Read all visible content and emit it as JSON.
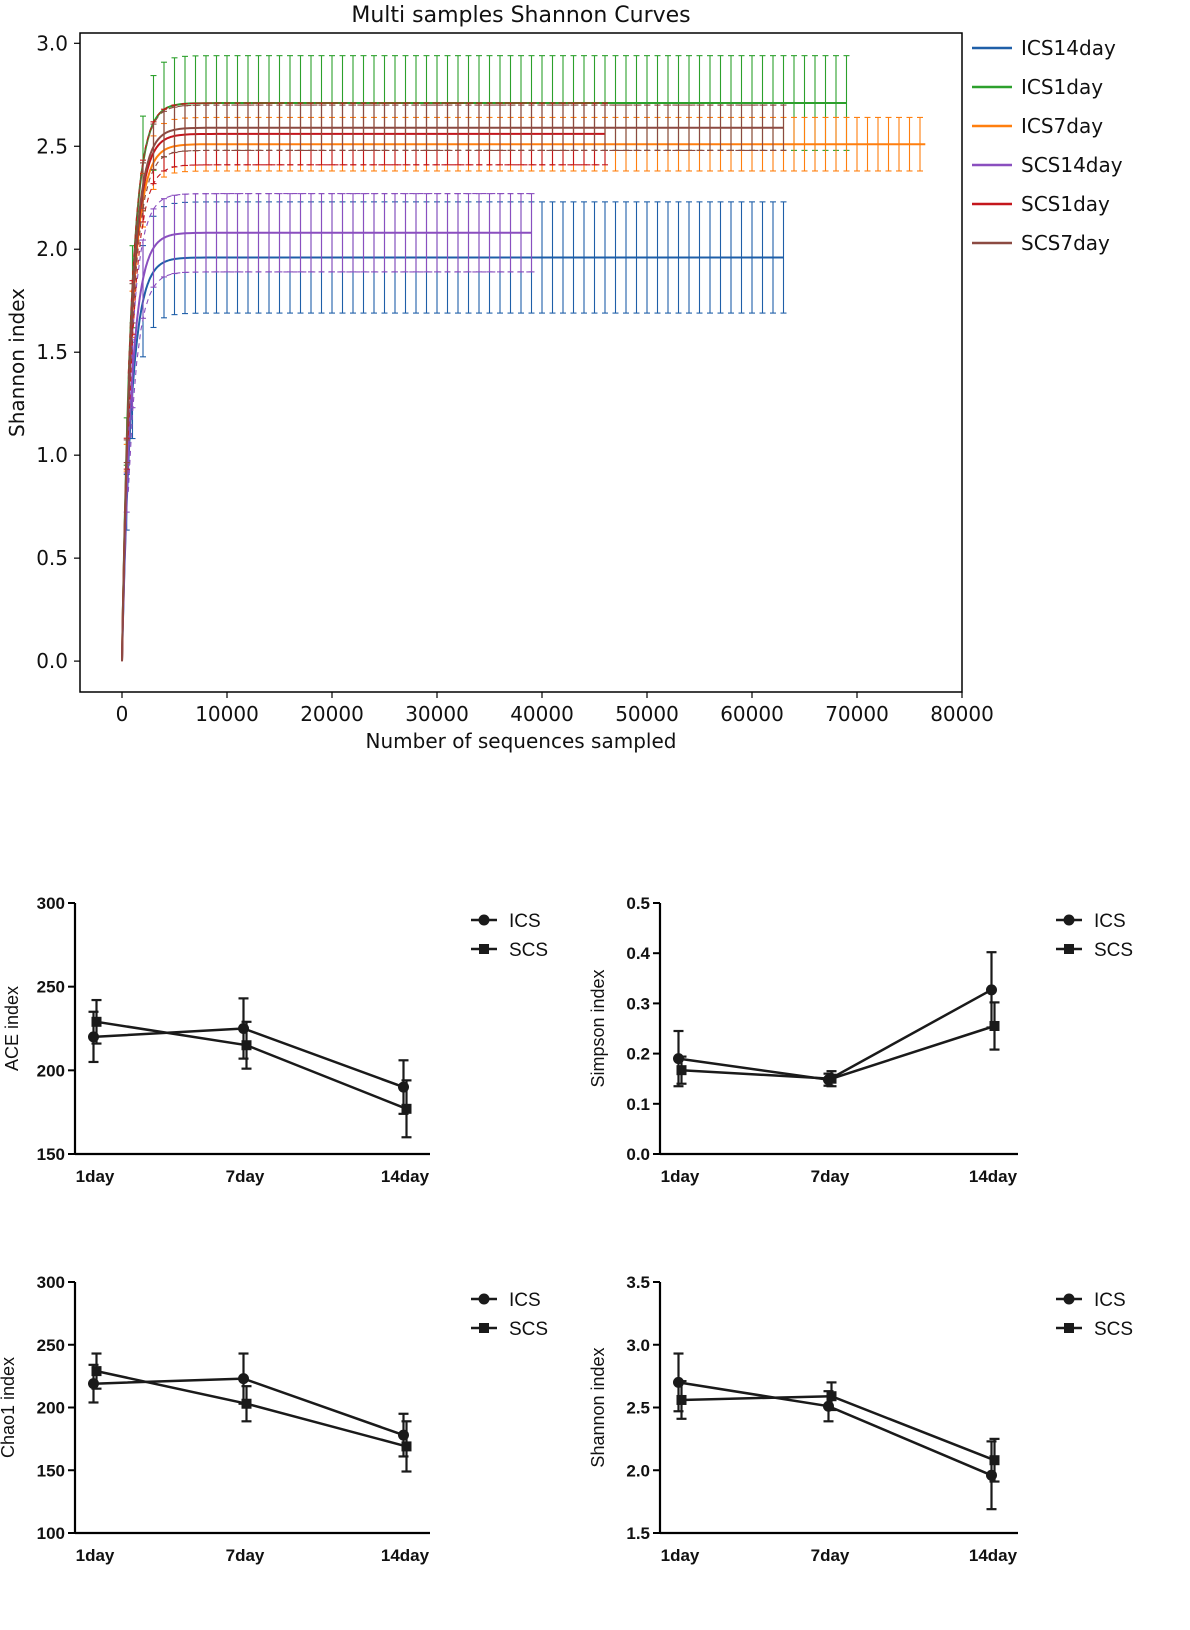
{
  "chart_data": [
    {
      "type": "line",
      "title": "Multi samples Shannon Curves",
      "xlabel": "Number of sequences sampled",
      "ylabel": "Shannon index",
      "xlim": [
        -4000,
        80000
      ],
      "ylim": [
        -0.15,
        3.05
      ],
      "xticks": [
        0,
        10000,
        20000,
        30000,
        40000,
        50000,
        60000,
        70000,
        80000
      ],
      "yticks": [
        0.0,
        0.5,
        1.0,
        1.5,
        2.0,
        2.5,
        3.0
      ],
      "xtick_labels": [
        "0",
        "10000",
        "20000",
        "30000",
        "40000",
        "50000",
        "60000",
        "70000",
        "80000"
      ],
      "ytick_labels": [
        "0.0",
        "0.5",
        "1.0",
        "1.5",
        "2.0",
        "2.5",
        "3.0"
      ],
      "legend_position": "outside-right",
      "series": [
        {
          "name": "ICS14day",
          "color": "#1f5fa8",
          "max_x": 63000,
          "plateau": 1.96,
          "err": 0.27,
          "err_solid": true
        },
        {
          "name": "ICS1day",
          "color": "#2ca02c",
          "max_x": 69000,
          "plateau": 2.71,
          "err": 0.23,
          "err_solid": true
        },
        {
          "name": "ICS7day",
          "color": "#ff7f0e",
          "max_x": 76500,
          "plateau": 2.51,
          "err": 0.13,
          "err_solid": true
        },
        {
          "name": "SCS14day",
          "color": "#8a4fbf",
          "max_x": 39000,
          "plateau": 2.08,
          "err": 0.19,
          "err_solid": false
        },
        {
          "name": "SCS1day",
          "color": "#c4161c",
          "max_x": 46000,
          "plateau": 2.56,
          "err": 0.15,
          "err_solid": false
        },
        {
          "name": "SCS7day",
          "color": "#8c4a42",
          "max_x": 63000,
          "plateau": 2.59,
          "err": 0.11,
          "err_solid": false
        }
      ]
    },
    {
      "type": "line",
      "title": "",
      "xlabel": "",
      "ylabel": "ACE index",
      "categories": [
        "1day",
        "7day",
        "14day"
      ],
      "ylim": [
        150,
        300
      ],
      "yticks": [
        150,
        200,
        250,
        300
      ],
      "ytick_labels": [
        "150",
        "200",
        "250",
        "300"
      ],
      "legend_position": "top-right",
      "series": [
        {
          "name": "ICS",
          "marker": "circle",
          "values": [
            220,
            225,
            190
          ],
          "err": [
            15,
            18,
            16
          ]
        },
        {
          "name": "SCS",
          "marker": "square",
          "values": [
            229,
            215,
            177
          ],
          "err": [
            13,
            14,
            17
          ]
        }
      ]
    },
    {
      "type": "line",
      "title": "",
      "xlabel": "",
      "ylabel": "Simpson index",
      "categories": [
        "1day",
        "7day",
        "14day"
      ],
      "ylim": [
        0.0,
        0.5
      ],
      "yticks": [
        0.0,
        0.1,
        0.2,
        0.3,
        0.4,
        0.5
      ],
      "ytick_labels": [
        "0.0",
        "0.1",
        "0.2",
        "0.3",
        "0.4",
        "0.5"
      ],
      "legend_position": "top-right",
      "series": [
        {
          "name": "ICS",
          "marker": "circle",
          "values": [
            0.19,
            0.148,
            0.327
          ],
          "err": [
            0.055,
            0.012,
            0.075
          ]
        },
        {
          "name": "SCS",
          "marker": "square",
          "values": [
            0.167,
            0.15,
            0.255
          ],
          "err": [
            0.027,
            0.015,
            0.047
          ]
        }
      ]
    },
    {
      "type": "line",
      "title": "",
      "xlabel": "",
      "ylabel": "Chao1 index",
      "categories": [
        "1day",
        "7day",
        "14day"
      ],
      "ylim": [
        100,
        300
      ],
      "yticks": [
        100,
        150,
        200,
        250,
        300
      ],
      "ytick_labels": [
        "100",
        "150",
        "200",
        "250",
        "300"
      ],
      "legend_position": "top-right",
      "series": [
        {
          "name": "ICS",
          "marker": "circle",
          "values": [
            219,
            223,
            178
          ],
          "err": [
            15,
            20,
            17
          ]
        },
        {
          "name": "SCS",
          "marker": "square",
          "values": [
            229,
            203,
            169
          ],
          "err": [
            14,
            14,
            20
          ]
        }
      ]
    },
    {
      "type": "line",
      "title": "",
      "xlabel": "",
      "ylabel": "Shannon index",
      "categories": [
        "1day",
        "7day",
        "14day"
      ],
      "ylim": [
        1.5,
        3.5
      ],
      "yticks": [
        1.5,
        2.0,
        2.5,
        3.0,
        3.5
      ],
      "ytick_labels": [
        "1.5",
        "2.0",
        "2.5",
        "3.0",
        "3.5"
      ],
      "legend_position": "top-right",
      "series": [
        {
          "name": "ICS",
          "marker": "circle",
          "values": [
            2.7,
            2.51,
            1.96
          ],
          "err": [
            0.23,
            0.12,
            0.27
          ]
        },
        {
          "name": "SCS",
          "marker": "square",
          "values": [
            2.56,
            2.59,
            2.08
          ],
          "err": [
            0.15,
            0.11,
            0.17
          ]
        }
      ]
    }
  ]
}
